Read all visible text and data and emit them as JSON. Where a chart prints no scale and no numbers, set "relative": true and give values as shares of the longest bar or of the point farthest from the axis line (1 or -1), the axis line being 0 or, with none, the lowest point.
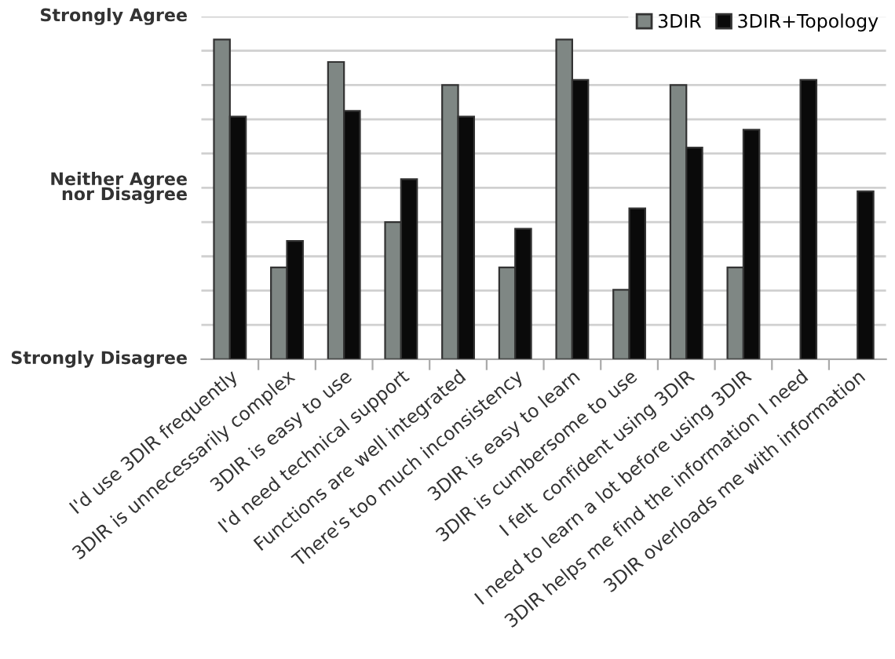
{
  "chart_data": {
    "type": "bar",
    "relative": true,
    "categories": [
      "I'd use 3DIR frequently",
      "3DIR is unnecessarily complex",
      "3DIR is easy to use",
      "I'd need technical support",
      "Functions are well integrated",
      "There's too much inconsistency",
      "3DIR is easy to learn",
      "3DIR is cumbersome to use",
      "I felt  confident using 3DIR",
      "I need to learn a lot before using 3DIR",
      "3DIR helps me find the information I need",
      "3DIR overloads me with information"
    ],
    "series": [
      {
        "name": "3DIR",
        "color": "#7f8784",
        "values": [
          1,
          0.287,
          0.93,
          0.429,
          0.858,
          0.287,
          1,
          0.217,
          0.858,
          0.287,
          null,
          null
        ]
      },
      {
        "name": "3DIR+Topology",
        "color": "#0a0a0a",
        "values": [
          0.759,
          0.37,
          0.777,
          0.563,
          0.759,
          0.408,
          0.874,
          0.472,
          0.662,
          0.718,
          0.874,
          0.525
        ]
      }
    ],
    "annotations": [
      "Strongly Agree",
      "Neither Agree\nnor Disagree",
      "Strongly Disagree"
    ],
    "grid": "y",
    "legend": "top right"
  }
}
